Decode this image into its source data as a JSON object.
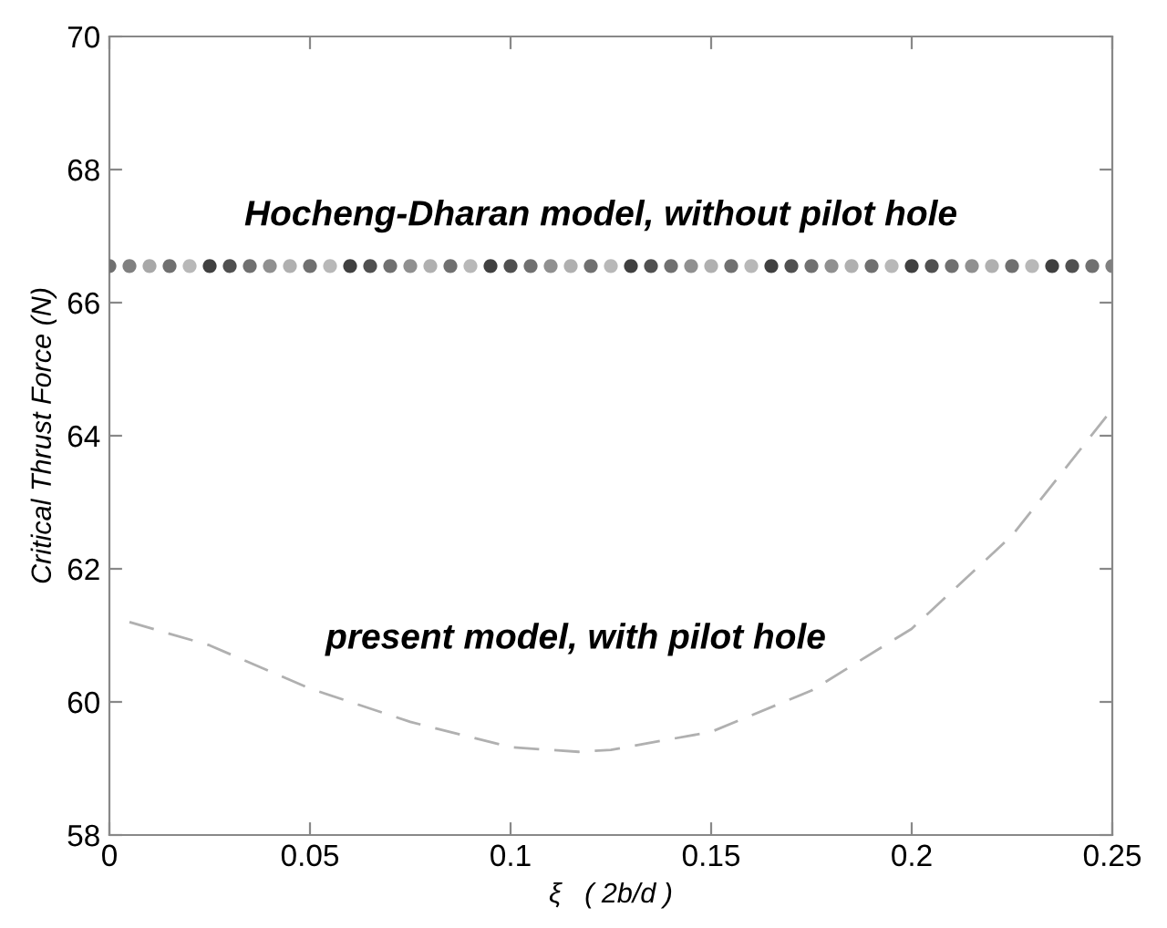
{
  "chart_data": {
    "type": "line",
    "xlabel": "ξ   ( 2b/d )",
    "ylabel": "Critical Thrust Force (N)",
    "xlim": [
      0,
      0.25
    ],
    "ylim": [
      58,
      70
    ],
    "xticks": [
      0,
      0.05,
      0.1,
      0.15,
      0.2,
      0.25
    ],
    "yticks": [
      58,
      60,
      62,
      64,
      66,
      68,
      70
    ],
    "grid": false,
    "legend": false,
    "series": [
      {
        "type": "scatter",
        "marker": "circle",
        "x": [
          0,
          0.005,
          0.01,
          0.015,
          0.02,
          0.025,
          0.03,
          0.035,
          0.04,
          0.045,
          0.05,
          0.055,
          0.06,
          0.065,
          0.07,
          0.075,
          0.08,
          0.085,
          0.09,
          0.095,
          0.1,
          0.105,
          0.11,
          0.115,
          0.12,
          0.125,
          0.13,
          0.135,
          0.14,
          0.145,
          0.15,
          0.155,
          0.16,
          0.165,
          0.17,
          0.175,
          0.18,
          0.185,
          0.19,
          0.195,
          0.2,
          0.205,
          0.21,
          0.215,
          0.22,
          0.225,
          0.23,
          0.235,
          0.24,
          0.245,
          0.25
        ],
        "values": [
          66.55,
          66.55,
          66.55,
          66.55,
          66.55,
          66.55,
          66.55,
          66.55,
          66.55,
          66.55,
          66.55,
          66.55,
          66.55,
          66.55,
          66.55,
          66.55,
          66.55,
          66.55,
          66.55,
          66.55,
          66.55,
          66.55,
          66.55,
          66.55,
          66.55,
          66.55,
          66.55,
          66.55,
          66.55,
          66.55,
          66.55,
          66.55,
          66.55,
          66.55,
          66.55,
          66.55,
          66.55,
          66.55,
          66.55,
          66.55,
          66.55,
          66.55,
          66.55,
          66.55,
          66.55,
          66.55,
          66.55,
          66.55,
          66.55,
          66.55,
          66.55
        ],
        "colors": [
          "#707070",
          "#808080",
          "#a8a8a8",
          "#707070",
          "#b8b8b8",
          "#404040",
          "#505050",
          "#707070",
          "#909090",
          "#b0b0b0",
          "#707070",
          "#b8b8b8",
          "#404040",
          "#505050",
          "#707070",
          "#909090",
          "#b0b0b0",
          "#707070",
          "#b8b8b8",
          "#404040",
          "#505050",
          "#707070",
          "#909090",
          "#b0b0b0",
          "#707070",
          "#b8b8b8",
          "#404040",
          "#505050",
          "#707070",
          "#909090",
          "#b0b0b0",
          "#707070",
          "#b8b8b8",
          "#404040",
          "#505050",
          "#707070",
          "#909090",
          "#b0b0b0",
          "#707070",
          "#b8b8b8",
          "#404040",
          "#505050",
          "#707070",
          "#909090",
          "#b0b0b0",
          "#707070",
          "#b8b8b8",
          "#404040",
          "#505050",
          "#707070",
          "#808080"
        ]
      },
      {
        "color": "#b0b0b0",
        "line_style": "dashed",
        "x": [
          0.005,
          0.025,
          0.05,
          0.075,
          0.1,
          0.117,
          0.125,
          0.15,
          0.175,
          0.2,
          0.225,
          0.25
        ],
        "values": [
          61.2,
          60.85,
          60.2,
          59.7,
          59.32,
          59.25,
          59.28,
          59.55,
          60.17,
          61.1,
          62.5,
          64.4
        ]
      }
    ],
    "annotations": [
      "Hocheng-Dharan model, without pilot hole",
      "present model, with pilot hole"
    ]
  }
}
